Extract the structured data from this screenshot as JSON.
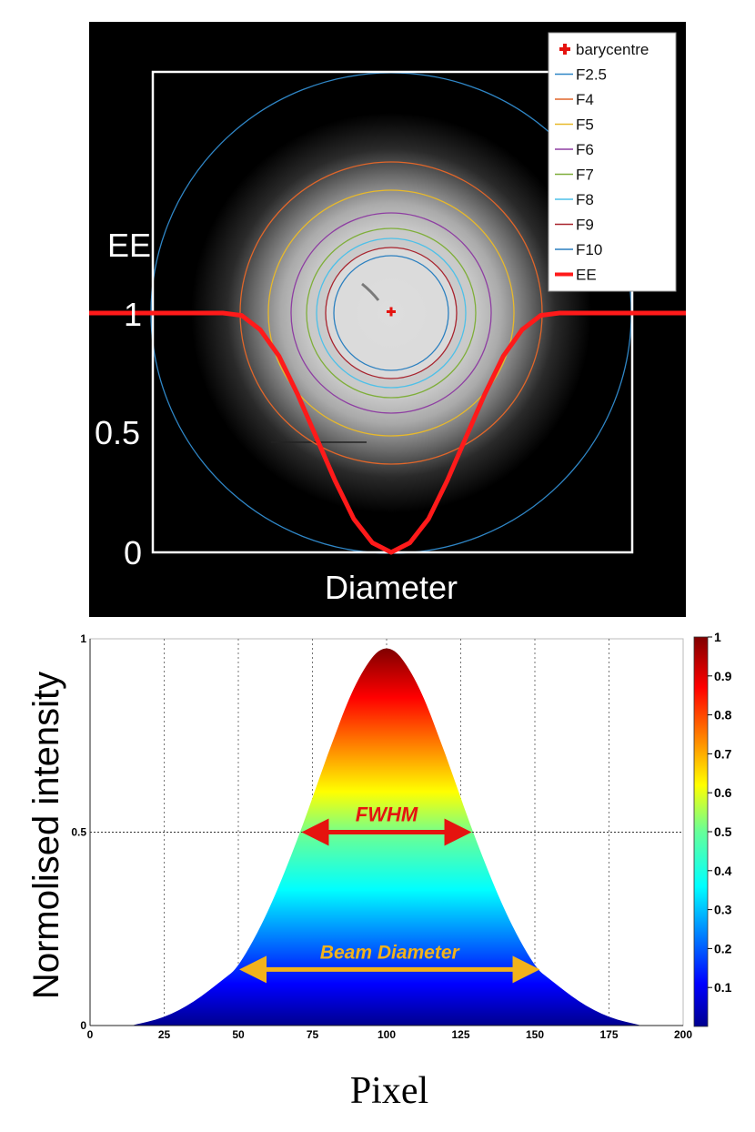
{
  "top_panel": {
    "ee_label": "EE",
    "tick_1": "1",
    "tick_05": "0.5",
    "tick_0": "0",
    "x_label": "Diameter",
    "legend": [
      {
        "label": "barycentre",
        "color": "#e5130f",
        "kind": "marker"
      },
      {
        "label": "F2.5",
        "color": "#2f86c6",
        "kind": "line"
      },
      {
        "label": "F4",
        "color": "#e0662a",
        "kind": "line"
      },
      {
        "label": "F5",
        "color": "#e8b92a",
        "kind": "line"
      },
      {
        "label": "F6",
        "color": "#8e3ea2",
        "kind": "line"
      },
      {
        "label": "F7",
        "color": "#7fae3a",
        "kind": "line"
      },
      {
        "label": "F8",
        "color": "#4dc0e8",
        "kind": "line"
      },
      {
        "label": "F9",
        "color": "#a8242e",
        "kind": "line"
      },
      {
        "label": "F10",
        "color": "#2a7fbf",
        "kind": "line"
      },
      {
        "label": "EE",
        "color": "#ff1a1a",
        "kind": "thick"
      }
    ]
  },
  "chart_data": [
    {
      "type": "line",
      "xlabel": "Diameter",
      "ylabel": "EE",
      "ylim": [
        0,
        1
      ],
      "yticks": [
        "0",
        "0.5",
        "1"
      ],
      "series": [
        {
          "name": "EE",
          "x": [
            -1,
            -0.9,
            -0.8,
            -0.7,
            -0.6,
            -0.5,
            -0.4,
            -0.3,
            -0.2,
            -0.1,
            0,
            0.1,
            0.2,
            0.3,
            0.4,
            0.5,
            0.6,
            0.7,
            0.8,
            0.9,
            1
          ],
          "y": [
            1,
            1,
            0.99,
            0.93,
            0.82,
            0.66,
            0.48,
            0.3,
            0.14,
            0.04,
            0,
            0.04,
            0.14,
            0.3,
            0.48,
            0.66,
            0.82,
            0.93,
            0.99,
            1,
            1
          ]
        }
      ],
      "circles": [
        "F2.5",
        "F4",
        "F5",
        "F6",
        "F7",
        "F8",
        "F9",
        "F10"
      ],
      "markers": [
        "barycentre"
      ]
    },
    {
      "type": "area",
      "xlabel": "Pixel",
      "ylabel": "Normolised intensity",
      "xlim": [
        0,
        200
      ],
      "ylim": [
        0,
        1
      ],
      "xticks": [
        "0",
        "25",
        "50",
        "75",
        "100",
        "125",
        "150",
        "175",
        "200"
      ],
      "yticks": [
        "0",
        "0.5",
        "1"
      ],
      "grid": true,
      "colorbar": {
        "ticks": [
          "0.1",
          "0.2",
          "0.3",
          "0.4",
          "0.5",
          "0.6",
          "0.7",
          "0.8",
          "0.9",
          "1"
        ],
        "range": [
          0,
          1
        ]
      },
      "series": [
        {
          "x": [
            14,
            25,
            35,
            45,
            50,
            60,
            71,
            80,
            90,
            100,
            110,
            120,
            129,
            140,
            150,
            155,
            165,
            175,
            186
          ],
          "y": [
            0,
            0.02,
            0.06,
            0.12,
            0.15,
            0.29,
            0.5,
            0.7,
            0.9,
            1,
            0.9,
            0.7,
            0.5,
            0.29,
            0.15,
            0.12,
            0.06,
            0.02,
            0
          ]
        }
      ],
      "annotations": [
        {
          "label": "FWHM",
          "x_from": 71,
          "x_to": 129,
          "y": 0.5,
          "color": "#e5130f"
        },
        {
          "label": "Beam Diameter",
          "x_from": 50,
          "x_to": 152,
          "y": 0.145,
          "color": "#f2b21b"
        }
      ]
    }
  ]
}
